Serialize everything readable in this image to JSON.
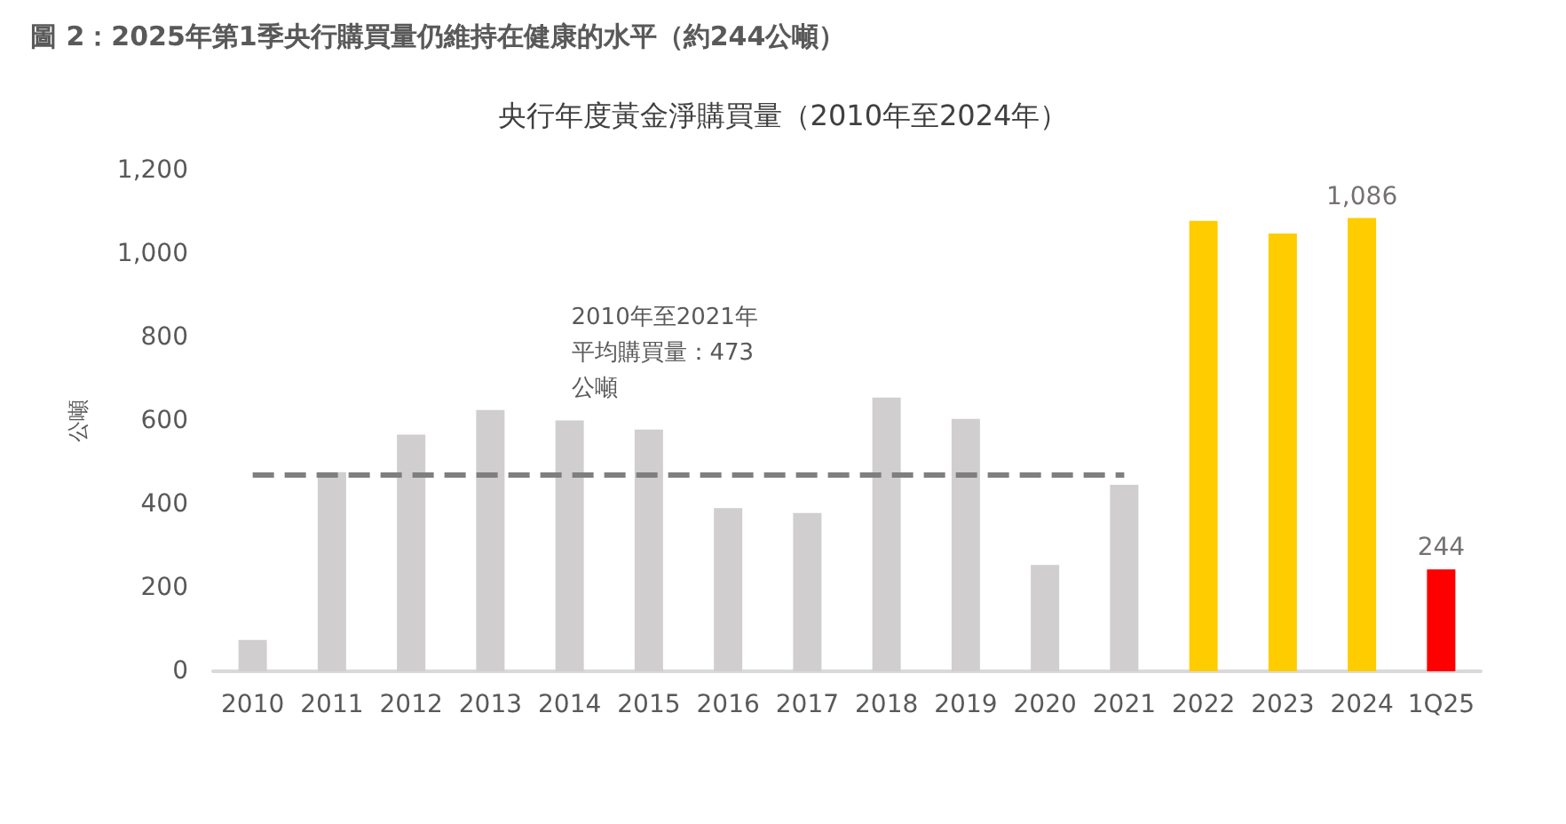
{
  "chart_data": {
    "type": "bar",
    "title": "圖 2：2025年第1季央行購買量仍維持在健康的水平（約244公噸）",
    "subtitle": "央行年度黃金淨購買量（2010年至2024年）",
    "ylabel": "公噸",
    "categories": [
      "2010",
      "2011",
      "2012",
      "2013",
      "2014",
      "2015",
      "2016",
      "2017",
      "2018",
      "2019",
      "2020",
      "2021",
      "2022",
      "2023",
      "2024",
      "1Q25"
    ],
    "values": [
      75,
      477,
      567,
      626,
      601,
      579,
      391,
      379,
      656,
      605,
      255,
      447,
      1079,
      1049,
      1086,
      244
    ],
    "colors": [
      "#d0cece",
      "#d0cece",
      "#d0cece",
      "#d0cece",
      "#d0cece",
      "#d0cece",
      "#d0cece",
      "#d0cece",
      "#d0cece",
      "#d0cece",
      "#d0cece",
      "#d0cece",
      "#ffcc00",
      "#ffcc00",
      "#ffcc00",
      "#ff0000"
    ],
    "value_labels": [
      null,
      null,
      null,
      null,
      null,
      null,
      null,
      null,
      null,
      null,
      null,
      null,
      null,
      null,
      "1,086",
      "244"
    ],
    "ylim": [
      0,
      1200
    ],
    "yticks": [
      0,
      200,
      400,
      600,
      800,
      {
        "value": 1000,
        "label": "1,000"
      },
      {
        "value": 1200,
        "label": "1,200"
      }
    ],
    "grid": false,
    "ref_lines": [
      {
        "axis": "y",
        "value": 473,
        "label": "2010年至2021年平均購買量：473公噸",
        "color": "#7f7f7f",
        "line_style": "dashed"
      }
    ]
  }
}
